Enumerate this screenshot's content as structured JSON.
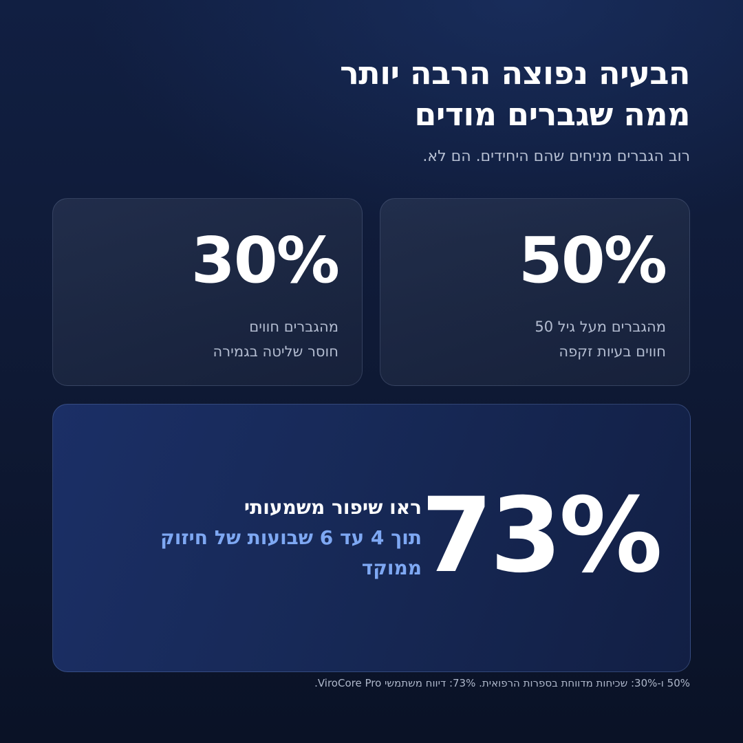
{
  "header": {
    "title_line1": "הבעיה נפוצה הרבה יותר",
    "title_line2": "ממה שגברים מודים",
    "subtitle": "רוב הגברים מניחים שהם היחידים. הם לא."
  },
  "stats": [
    {
      "value": "50%",
      "line1": "מהגברים מעל גיל 50",
      "line2": "חווים בעיות זקפה"
    },
    {
      "value": "30%",
      "line1": "מהגברים חווים",
      "line2": "חוסר שליטה בגמירה"
    }
  ],
  "feature": {
    "value": "73%",
    "heading": "ראו שיפור משמעותי",
    "highlight": "תוך 4 עד 6 שבועות של חיזוק ממוקד"
  },
  "footnote": "50% ו-30%: שכיחות מדווחת בספרות הרפואית. 73%: דיווח משתמשי ViroCore Pro.",
  "colors": {
    "background": "#0f1a36",
    "highlight": "#7ea8f3",
    "muted_text": "#b3bcd0"
  }
}
